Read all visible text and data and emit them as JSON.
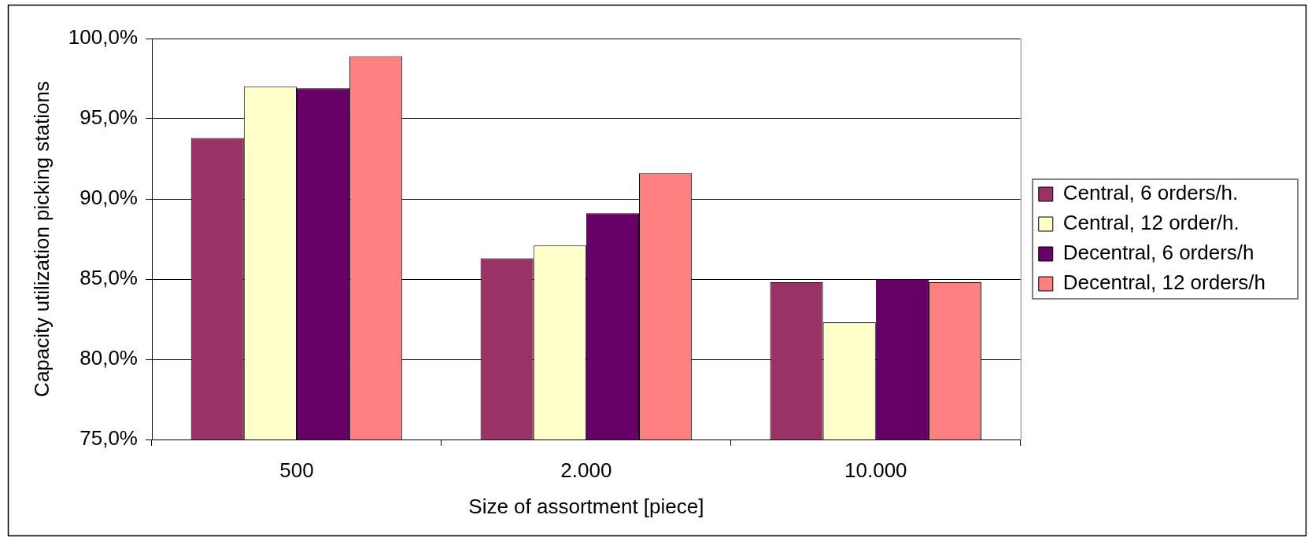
{
  "chart_data": {
    "type": "bar",
    "xlabel": "Size of assortment [piece]",
    "ylabel": "Capacity utilization picking stations",
    "categories": [
      "500",
      "2.000",
      "10.000"
    ],
    "series": [
      {
        "name": "Central, 6 orders/h.",
        "color": "#993366",
        "values": [
          93.8,
          86.3,
          84.8
        ]
      },
      {
        "name": "Central, 12 order/h.",
        "color": "#ffffcc",
        "values": [
          97.0,
          87.1,
          82.3
        ]
      },
      {
        "name": "Decentral, 6 orders/h",
        "color": "#660066",
        "values": [
          96.9,
          89.1,
          85.0
        ]
      },
      {
        "name": "Decentral, 12 orders/h",
        "color": "#ff8080",
        "values": [
          98.9,
          91.6,
          84.8
        ]
      }
    ],
    "ylim": [
      75,
      100
    ],
    "yticks": [
      {
        "value": 75,
        "label": "75,0%"
      },
      {
        "value": 80,
        "label": "80,0%"
      },
      {
        "value": 85,
        "label": "85,0%"
      },
      {
        "value": 90,
        "label": "90,0%"
      },
      {
        "value": 95,
        "label": "95,0%"
      },
      {
        "value": 100,
        "label": "100,0%"
      }
    ],
    "grid": "y",
    "legend": "right"
  }
}
